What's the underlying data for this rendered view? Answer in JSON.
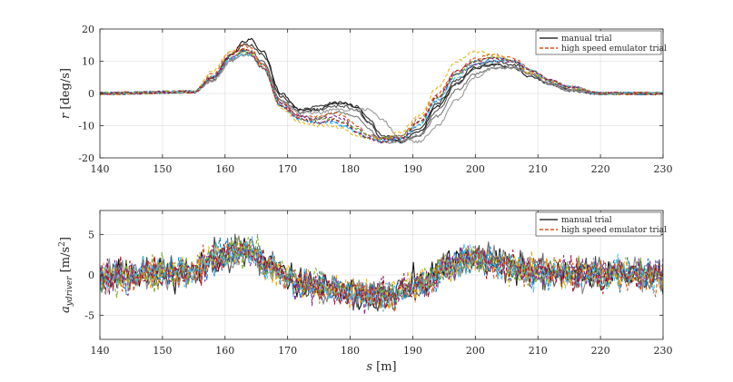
{
  "chart_data": [
    {
      "type": "line",
      "ylabel_var": "r",
      "ylabel_unit": "[deg/s]",
      "xlim": [
        140,
        230
      ],
      "ylim": [
        -20,
        20
      ],
      "xticks": [
        140,
        150,
        160,
        170,
        180,
        190,
        200,
        210,
        220,
        230
      ],
      "yticks": [
        -20,
        -10,
        0,
        10,
        20
      ],
      "xtick_labels": [
        "140",
        "150",
        "160",
        "170",
        "180",
        "190",
        "200",
        "210",
        "220",
        "230"
      ],
      "ytick_labels": [
        "-20",
        "-10",
        "0",
        "10",
        "20"
      ],
      "grid": true,
      "legend_position": "top-right",
      "legend": [
        {
          "label": "manual trial",
          "style": "solid",
          "color": "#333333"
        },
        {
          "label": "high speed emulator trial",
          "style": "dashed",
          "color": "#D95319"
        }
      ],
      "manual_trials": [
        {
          "color": "#111111",
          "x": [
            140,
            155,
            158,
            161,
            163,
            164,
            166,
            169,
            172,
            175,
            177,
            179,
            181,
            183,
            185,
            188,
            191,
            194,
            197,
            200,
            203,
            206,
            209,
            212,
            215,
            220,
            225,
            230
          ],
          "y": [
            0,
            0.5,
            5,
            12,
            16,
            17,
            13,
            0,
            -5,
            -5,
            -3,
            -3,
            -4,
            -9,
            -14,
            -15,
            -12,
            -4,
            3,
            8,
            9,
            8,
            5,
            3,
            1,
            0,
            0,
            0
          ]
        },
        {
          "color": "#333333",
          "x": [
            140,
            155,
            158,
            161,
            163,
            164,
            166,
            169,
            172,
            175,
            177,
            179,
            181,
            183,
            185,
            188,
            191,
            194,
            197,
            200,
            203,
            206,
            209,
            212,
            215,
            220,
            225,
            230
          ],
          "y": [
            0,
            0.5,
            5,
            12,
            15,
            15,
            12,
            -1,
            -5,
            -4,
            -3,
            -3,
            -4,
            -8,
            -13,
            -14,
            -11,
            -3,
            4,
            9,
            10,
            9,
            6,
            3,
            1,
            0,
            0,
            0
          ]
        },
        {
          "color": "#555555",
          "x": [
            140,
            155,
            158,
            161,
            163,
            164,
            166,
            169,
            172,
            175,
            177,
            179,
            181,
            183,
            185,
            188,
            191,
            194,
            197,
            200,
            203,
            206,
            209,
            212,
            215,
            220,
            225,
            230
          ],
          "y": [
            0,
            0.5,
            4,
            11,
            13.5,
            13,
            10,
            -2,
            -6,
            -5,
            -4,
            -4,
            -5,
            -9,
            -14,
            -15,
            -13,
            -5,
            3,
            8,
            9,
            8,
            6,
            3,
            1,
            0,
            0,
            0
          ]
        },
        {
          "color": "#777777",
          "x": [
            140,
            155,
            158,
            161,
            163,
            164,
            166,
            169,
            172,
            175,
            177,
            179,
            181,
            183,
            185,
            188,
            191,
            194,
            197,
            200,
            203,
            206,
            209,
            212,
            215,
            220,
            225,
            230
          ],
          "y": [
            0,
            0.5,
            4,
            10,
            12,
            12,
            9,
            -3,
            -7,
            -8,
            -6,
            -6,
            -7,
            -11,
            -15,
            -15,
            -13,
            -7,
            1,
            6,
            8,
            8,
            6,
            3,
            1,
            0,
            0,
            0
          ]
        },
        {
          "color": "#999999",
          "x": [
            140,
            155,
            158,
            161,
            163,
            164,
            166,
            169,
            172,
            175,
            177,
            179,
            181,
            183,
            185,
            188,
            191,
            194,
            197,
            200,
            203,
            206,
            209,
            212,
            215,
            220,
            225,
            230
          ],
          "y": [
            0,
            0.5,
            4,
            10,
            12,
            12,
            9,
            -3,
            -6,
            -6,
            -5,
            -5,
            -5,
            -5,
            -8,
            -14,
            -15,
            -10,
            -2,
            5,
            8,
            8,
            6,
            3,
            1,
            0,
            0,
            0
          ]
        }
      ],
      "emulator_trials": [
        {
          "color": "#0072BD",
          "x": [
            140,
            155,
            158,
            161,
            163,
            164,
            166,
            169,
            172,
            175,
            177,
            179,
            181,
            183,
            185,
            188,
            191,
            194,
            197,
            200,
            203,
            206,
            209,
            212,
            215,
            220,
            225,
            230
          ],
          "y": [
            0,
            0.5,
            5,
            11,
            13,
            12,
            8,
            -4,
            -8,
            -9,
            -9,
            -10,
            -12,
            -14,
            -15,
            -14,
            -10,
            -2,
            6,
            10,
            11,
            10,
            7,
            4,
            2,
            0,
            0,
            0
          ]
        },
        {
          "color": "#D95319",
          "x": [
            140,
            155,
            158,
            161,
            163,
            164,
            166,
            169,
            172,
            175,
            177,
            179,
            181,
            183,
            185,
            188,
            191,
            194,
            197,
            200,
            203,
            206,
            209,
            212,
            215,
            220,
            225,
            230
          ],
          "y": [
            0,
            0.5,
            6,
            13,
            15,
            14,
            9,
            -3,
            -7,
            -7,
            -6,
            -7,
            -10,
            -13,
            -14,
            -13,
            -8,
            0,
            7,
            11,
            12,
            11,
            7,
            4,
            2,
            0,
            0,
            0
          ]
        },
        {
          "color": "#EDB120",
          "x": [
            140,
            155,
            158,
            161,
            163,
            164,
            166,
            169,
            172,
            175,
            177,
            179,
            181,
            183,
            185,
            188,
            191,
            194,
            197,
            200,
            203,
            206,
            209,
            212,
            215,
            220,
            225,
            230
          ],
          "y": [
            0,
            0.5,
            7,
            13,
            14,
            13,
            8,
            -5,
            -9,
            -10,
            -10,
            -11,
            -13,
            -14,
            -14,
            -12,
            -7,
            2,
            10,
            13,
            12,
            10,
            6,
            4,
            2,
            0,
            0,
            0
          ]
        },
        {
          "color": "#7E2F8E",
          "x": [
            140,
            155,
            158,
            161,
            163,
            164,
            166,
            169,
            172,
            175,
            177,
            179,
            181,
            183,
            185,
            188,
            191,
            194,
            197,
            200,
            203,
            206,
            209,
            212,
            215,
            220,
            225,
            230
          ],
          "y": [
            0,
            0.5,
            5,
            11,
            13,
            12,
            8,
            -3,
            -7,
            -8,
            -7,
            -8,
            -11,
            -13,
            -14,
            -13,
            -9,
            -1,
            6,
            9,
            10,
            10,
            7,
            4,
            2,
            0,
            0,
            0
          ]
        },
        {
          "color": "#77AC30",
          "x": [
            140,
            155,
            158,
            161,
            163,
            164,
            166,
            169,
            172,
            175,
            177,
            179,
            181,
            183,
            185,
            188,
            191,
            194,
            197,
            200,
            203,
            206,
            209,
            212,
            215,
            220,
            225,
            230
          ],
          "y": [
            0,
            0.5,
            5,
            12,
            13,
            12,
            8,
            -4,
            -8,
            -8,
            -8,
            -9,
            -11,
            -13,
            -14,
            -13,
            -9,
            -1,
            6,
            10,
            11,
            10,
            7,
            4,
            2,
            0,
            0,
            0
          ]
        },
        {
          "color": "#4DBEEE",
          "x": [
            140,
            155,
            158,
            161,
            163,
            164,
            166,
            169,
            172,
            175,
            177,
            179,
            181,
            183,
            185,
            188,
            191,
            194,
            197,
            200,
            203,
            206,
            209,
            212,
            215,
            220,
            225,
            230
          ],
          "y": [
            0,
            0.5,
            5,
            11,
            12,
            12,
            8,
            -4,
            -8,
            -9,
            -9,
            -10,
            -12,
            -14,
            -15,
            -14,
            -10,
            -2,
            5,
            9,
            10,
            10,
            7,
            4,
            2,
            0,
            0,
            0
          ]
        },
        {
          "color": "#A2142F",
          "x": [
            140,
            155,
            158,
            161,
            163,
            164,
            166,
            169,
            172,
            175,
            177,
            179,
            181,
            183,
            185,
            188,
            191,
            194,
            197,
            200,
            203,
            206,
            209,
            212,
            215,
            220,
            225,
            230
          ],
          "y": [
            0,
            0.5,
            5,
            12,
            14,
            13,
            8,
            -4,
            -8,
            -9,
            -8,
            -9,
            -12,
            -14,
            -15,
            -14,
            -9,
            -1,
            7,
            10,
            11,
            10,
            7,
            4,
            2,
            0,
            0,
            0
          ]
        }
      ]
    },
    {
      "type": "line",
      "ylabel_var": "a",
      "ylabel_sub": "ydriver",
      "ylabel_unit": "[m/s",
      "ylabel_unit_sup": "2",
      "ylabel_unit_close": "]",
      "xlabel_var": "s",
      "xlabel_unit": "[m]",
      "xlim": [
        140,
        230
      ],
      "ylim": [
        -8,
        8
      ],
      "xticks": [
        140,
        150,
        160,
        170,
        180,
        190,
        200,
        210,
        220,
        230
      ],
      "yticks": [
        -5,
        0,
        5
      ],
      "xtick_labels": [
        "140",
        "150",
        "160",
        "170",
        "180",
        "190",
        "200",
        "210",
        "220",
        "230"
      ],
      "ytick_labels": [
        "-5",
        "0",
        "5"
      ],
      "grid": true,
      "legend_position": "top-right",
      "legend": [
        {
          "label": "manual trial",
          "style": "solid",
          "color": "#333333"
        },
        {
          "label": "high speed emulator trial",
          "style": "dashed",
          "color": "#D95319"
        }
      ],
      "mean_profile": {
        "x": [
          140,
          155,
          158,
          162,
          164,
          167,
          172,
          178,
          183,
          187,
          191,
          196,
          200,
          205,
          210,
          230
        ],
        "y": [
          0,
          0.3,
          2,
          3,
          3,
          1,
          -1,
          -2,
          -2.5,
          -2.5,
          -1,
          1,
          2,
          1,
          0.2,
          0
        ]
      },
      "noise_amplitude": 1.6,
      "samples": 300,
      "manual_trials": [
        {
          "color": "#111111",
          "seed": 11
        },
        {
          "color": "#444444",
          "seed": 23
        },
        {
          "color": "#666666",
          "seed": 37
        },
        {
          "color": "#888888",
          "seed": 41
        }
      ],
      "emulator_trials": [
        {
          "color": "#0072BD",
          "seed": 53
        },
        {
          "color": "#D95319",
          "seed": 67
        },
        {
          "color": "#EDB120",
          "seed": 71
        },
        {
          "color": "#7E2F8E",
          "seed": 83
        },
        {
          "color": "#77AC30",
          "seed": 97
        },
        {
          "color": "#4DBEEE",
          "seed": 101
        },
        {
          "color": "#A2142F",
          "seed": 113
        }
      ]
    }
  ]
}
